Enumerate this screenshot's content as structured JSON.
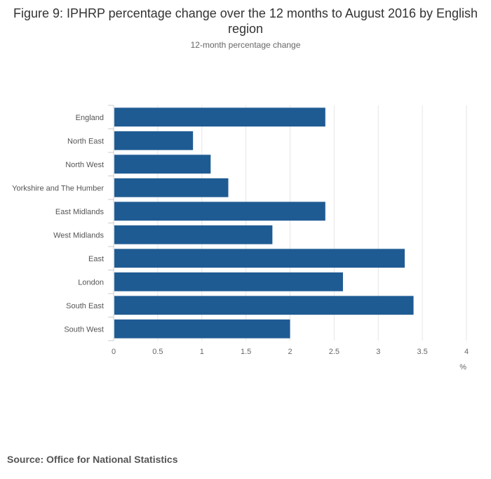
{
  "chart_data": {
    "type": "bar",
    "orientation": "horizontal",
    "title": "Figure 9: IPHRP percentage change over the 12 months to August 2016 by English region",
    "subtitle": "12-month percentage change",
    "categories": [
      "England",
      "North East",
      "North West",
      "Yorkshire and The Humber",
      "East Midlands",
      "West Midlands",
      "East",
      "London",
      "South East",
      "South West"
    ],
    "values": [
      2.4,
      0.9,
      1.1,
      1.3,
      2.4,
      1.8,
      3.3,
      2.6,
      3.4,
      2.0
    ],
    "xlim": [
      0,
      4
    ],
    "xticks": [
      "0",
      "0.5",
      "1",
      "1.5",
      "2",
      "2.5",
      "3",
      "3.5",
      "4"
    ],
    "xlabel": "%",
    "bar_color": "#1f5b93",
    "grid": true
  },
  "source": "Source: Office for National Statistics"
}
